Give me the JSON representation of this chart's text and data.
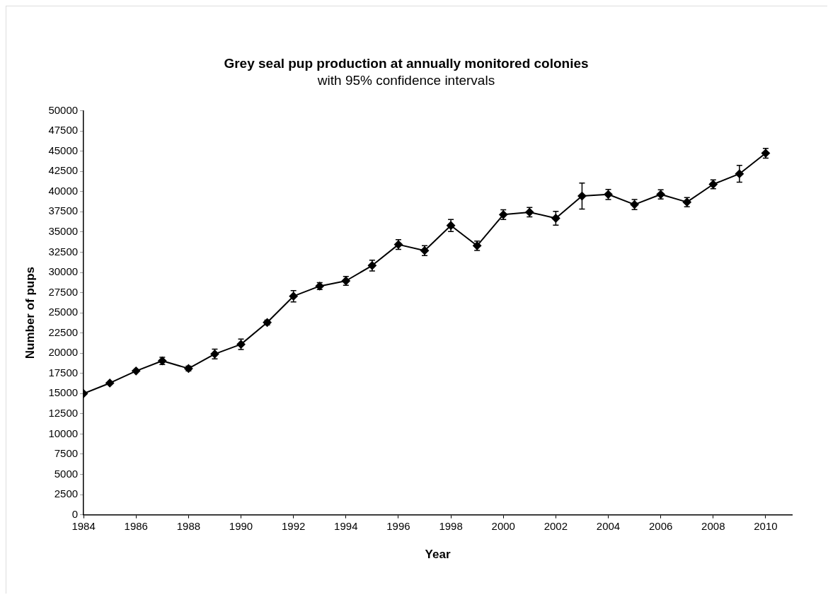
{
  "chart_data": {
    "type": "line",
    "title": "Grey seal pup production at annually monitored colonies",
    "subtitle": "with 95% confidence intervals",
    "xlabel": "Year",
    "ylabel": "Number of pups",
    "x": [
      1984,
      1985,
      1986,
      1987,
      1988,
      1989,
      1990,
      1991,
      1992,
      1993,
      1994,
      1995,
      1996,
      1997,
      1998,
      1999,
      2000,
      2001,
      2002,
      2003,
      2004,
      2005,
      2006,
      2007,
      2008,
      2009,
      2010
    ],
    "series": [
      {
        "color": "#000000",
        "values": [
          15000,
          16300,
          17800,
          19050,
          18100,
          19900,
          21100,
          23800,
          27050,
          28300,
          28950,
          30850,
          33450,
          32700,
          35800,
          33300,
          37150,
          37450,
          36700,
          39450,
          39650,
          38400,
          39650,
          38700,
          40900,
          42200,
          44750
        ],
        "errors": [
          null,
          null,
          null,
          450,
          300,
          600,
          650,
          300,
          700,
          430,
          550,
          670,
          610,
          610,
          740,
          580,
          610,
          580,
          860,
          1610,
          625,
          625,
          570,
          570,
          555,
          1040,
          600
        ]
      }
    ],
    "xlim": [
      1984,
      2011
    ],
    "xticks": [
      1984,
      1986,
      1988,
      1990,
      1992,
      1994,
      1996,
      1998,
      2000,
      2002,
      2004,
      2006,
      2008,
      2010
    ],
    "ylim": [
      0,
      50000
    ],
    "yticks": [
      0,
      2500,
      5000,
      7500,
      10000,
      12500,
      15000,
      17500,
      20000,
      22500,
      25000,
      27500,
      30000,
      32500,
      35000,
      37500,
      40000,
      42500,
      45000,
      47500,
      50000
    ],
    "grid": false,
    "legend": false,
    "marker": "diamond",
    "line_style": "solid"
  }
}
